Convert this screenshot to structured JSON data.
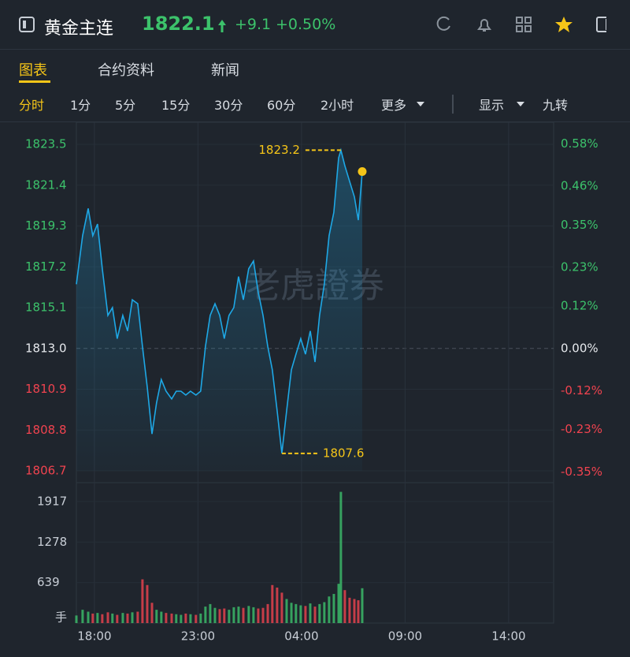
{
  "header": {
    "title": "黄金主连",
    "price": "1822.1",
    "change": "+9.1",
    "change_pct": "+0.50%"
  },
  "tabs": [
    "图表",
    "合约资料",
    "新闻"
  ],
  "periods": [
    "分时",
    "1分",
    "5分",
    "15分",
    "30分",
    "60分",
    "2小时",
    "更多",
    "显示",
    "九转"
  ],
  "chart_data": {
    "type": "line",
    "watermark": "老虎證券",
    "x": [
      -0.87,
      -0.57,
      -0.3,
      -0.08,
      0.15,
      0.38,
      0.65,
      0.87,
      1.1,
      1.37,
      1.6,
      1.83,
      2.09,
      2.32,
      2.55,
      2.78,
      3.0,
      3.23,
      3.46,
      3.73,
      3.95,
      4.18,
      4.41,
      4.64,
      4.9,
      5.13,
      5.36,
      5.59,
      5.82,
      6.05,
      6.27,
      6.5,
      6.73,
      6.96,
      7.19,
      7.45,
      7.68,
      7.91,
      8.14,
      8.37,
      8.59,
      8.82,
      9.05,
      9.28,
      9.51,
      9.73,
      9.96,
      10.19,
      10.42,
      10.65,
      10.87,
      11.1,
      11.33,
      11.56,
      11.79,
      11.9,
      12.09,
      12.32,
      12.55,
      12.74,
      12.93
    ],
    "series": [
      {
        "color": "#1ea8e6",
        "values": [
          1816.3,
          1818.8,
          1820.2,
          1818.8,
          1819.4,
          1817.1,
          1814.7,
          1815.1,
          1813.5,
          1814.7,
          1813.9,
          1815.5,
          1815.3,
          1813.1,
          1811.0,
          1808.6,
          1810.2,
          1811.4,
          1810.8,
          1810.4,
          1810.8,
          1810.8,
          1810.6,
          1810.8,
          1810.6,
          1810.8,
          1813.1,
          1814.7,
          1815.3,
          1814.7,
          1813.5,
          1814.7,
          1815.1,
          1816.7,
          1815.5,
          1817.1,
          1817.5,
          1815.9,
          1814.7,
          1813.1,
          1811.9,
          1809.8,
          1807.6,
          1809.8,
          1811.9,
          1812.7,
          1813.5,
          1812.7,
          1813.9,
          1812.3,
          1814.7,
          1816.3,
          1818.8,
          1820.0,
          1822.8,
          1823.2,
          1822.4,
          1821.6,
          1820.8,
          1819.6,
          1822.1
        ]
      },
      {
        "axis": "volume",
        "up_color": "#3cc26b",
        "down_color": "#f0434f",
        "values": [
          120,
          210,
          180,
          150,
          160,
          140,
          170,
          150,
          130,
          160,
          150,
          170,
          180,
          690,
          600,
          320,
          210,
          180,
          160,
          150,
          140,
          130,
          150,
          140,
          130,
          150,
          260,
          300,
          240,
          220,
          230,
          210,
          250,
          260,
          240,
          270,
          250,
          230,
          240,
          300,
          600,
          560,
          480,
          380,
          320,
          300,
          280,
          270,
          310,
          260,
          300,
          330,
          420,
          460,
          620,
          2070,
          520,
          400,
          380,
          360,
          550
        ]
      }
    ],
    "xlim": [
      -0.87,
      22.17
    ],
    "xticks": [
      {
        "value": 0,
        "label": "18:00"
      },
      {
        "value": 5,
        "label": "23:00"
      },
      {
        "value": 10,
        "label": "04:00"
      },
      {
        "value": 15,
        "label": "09:00"
      },
      {
        "value": 20,
        "label": "14:00"
      }
    ],
    "ylim": [
      1806.7,
      1823.5
    ],
    "yticks": [
      1806.7,
      1808.8,
      1810.9,
      {
        "value": 1813,
        "label": "1813.0"
      },
      1815.1,
      1817.2,
      1819.3,
      1821.4,
      1823.5
    ],
    "base": 1813,
    "y2lim": [
      -0.347,
      0.579
    ],
    "y2ticks": [
      {
        "value": -0.35,
        "label": "-0.35%"
      },
      {
        "value": -0.23,
        "label": "-0.23%"
      },
      {
        "value": -0.12,
        "label": "-0.12%"
      },
      {
        "value": 0,
        "label": "0.00%"
      },
      {
        "value": 0.12,
        "label": "0.12%"
      },
      {
        "value": 0.23,
        "label": "0.23%"
      },
      {
        "value": 0.35,
        "label": "0.35%"
      },
      {
        "value": 0.46,
        "label": "0.46%"
      },
      {
        "value": 0.58,
        "label": "0.58%"
      }
    ],
    "vlim": [
      0,
      2115
    ],
    "vticks": [
      639,
      1278,
      1917
    ],
    "vlabel": "手",
    "annotations": [
      {
        "text": "1823.2",
        "value": 1823.2,
        "x": 11.9
      },
      {
        "text": "1807.6",
        "value": 1807.6,
        "x": 9.05
      }
    ],
    "up_color": "#3cc26b",
    "down_color": "#f0434f",
    "grid": true
  }
}
